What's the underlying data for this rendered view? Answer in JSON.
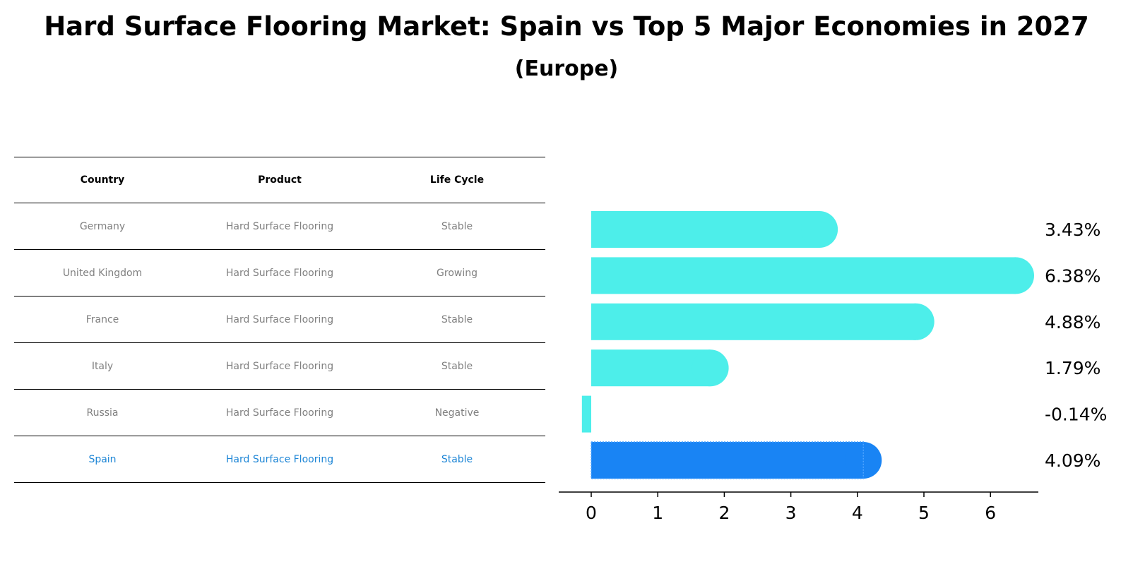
{
  "header": {
    "title": "Hard Surface Flooring Market: Spain vs Top 5 Major Economies in 2027",
    "subtitle": "(Europe)"
  },
  "table": {
    "columns": [
      "Country",
      "Product",
      "Life Cycle"
    ],
    "rows": [
      {
        "country": "Germany",
        "product": "Hard Surface Flooring",
        "life_cycle": "Stable"
      },
      {
        "country": "United Kingdom",
        "product": "Hard Surface Flooring",
        "life_cycle": "Growing"
      },
      {
        "country": "France",
        "product": "Hard Surface Flooring",
        "life_cycle": "Stable"
      },
      {
        "country": "Italy",
        "product": "Hard Surface Flooring",
        "life_cycle": "Stable"
      },
      {
        "country": "Russia",
        "product": "Hard Surface Flooring",
        "life_cycle": "Negative"
      },
      {
        "country": "Spain",
        "product": "Hard Surface Flooring",
        "life_cycle": "Stable"
      }
    ]
  },
  "chart_data": {
    "type": "bar",
    "orientation": "horizontal",
    "categories": [
      "Germany",
      "United Kingdom",
      "France",
      "Italy",
      "Russia",
      "Spain"
    ],
    "values": [
      3.43,
      6.38,
      4.88,
      1.79,
      -0.14,
      4.09
    ],
    "value_labels": [
      "3.43%",
      "6.38%",
      "4.88%",
      "1.79%",
      "-0.14%",
      "4.09%"
    ],
    "highlight_category": "Spain",
    "xlim": [
      -0.5,
      6.7
    ],
    "xticks": [
      0,
      1,
      2,
      3,
      4,
      5,
      6
    ],
    "xlabel": "",
    "ylabel": "",
    "grid": false,
    "colors": {
      "default": "#4deeea",
      "highlight": "#1984f4",
      "highlight_text": "#1e86d6",
      "muted_text": "#808080"
    }
  }
}
